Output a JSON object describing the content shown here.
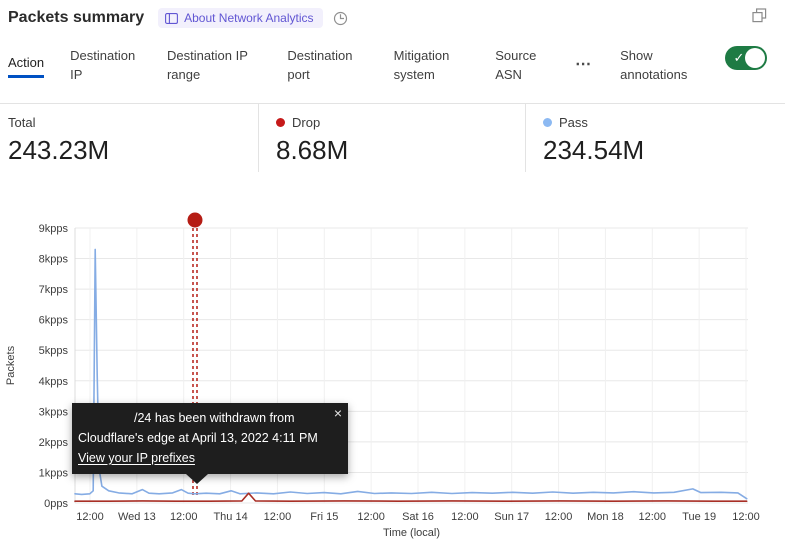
{
  "header": {
    "title": "Packets summary",
    "about_badge_label": "About Network Analytics"
  },
  "tabs": {
    "items": [
      {
        "label": "Action",
        "active": true
      },
      {
        "label": "Destination IP",
        "active": false
      },
      {
        "label": "Destination IP range",
        "active": false
      },
      {
        "label": "Destination port",
        "active": false
      },
      {
        "label": "Mitigation system",
        "active": false
      },
      {
        "label": "Source ASN",
        "active": false
      }
    ],
    "more_glyph": "⋯",
    "show_annotations": {
      "label": "Show annotations",
      "on": true,
      "check_glyph": "✓"
    }
  },
  "stats": [
    {
      "label": "Total",
      "value": "243.23M",
      "dot_color": null
    },
    {
      "label": "Drop",
      "value": "8.68M",
      "dot_color": "#c61a1a"
    },
    {
      "label": "Pass",
      "value": "234.54M",
      "dot_color": "#8cb9f2"
    }
  ],
  "tooltip": {
    "line1": "/24 has been withdrawn from",
    "line2": "Cloudflare's edge at April 13, 2022 4:11 PM",
    "link_label": "View your IP prefixes",
    "close_glyph": "×"
  },
  "chart_data": {
    "type": "line",
    "xlabel": "Time (local)",
    "ylabel": "Packets",
    "ylim": [
      0,
      9
    ],
    "y_unit": "kpps",
    "y_ticks": [
      "0pps",
      "1kpps",
      "2kpps",
      "3kpps",
      "4kpps",
      "5kpps",
      "6kpps",
      "7kpps",
      "8kpps",
      "9kpps"
    ],
    "x_ticks": [
      "12:00",
      "Wed 13",
      "12:00",
      "Thu 14",
      "12:00",
      "Fri 15",
      "12:00",
      "Sat 16",
      "12:00",
      "Sun 17",
      "12:00",
      "Mon 18",
      "12:00",
      "Tue 19",
      "12:00"
    ],
    "grid": true,
    "legend_position": "stats-row-above",
    "series": [
      {
        "name": "Pass",
        "color": "#85ace4",
        "points": [
          [
            0.0,
            0.3
          ],
          [
            0.01,
            0.28
          ],
          [
            0.022,
            0.3
          ],
          [
            0.027,
            0.4
          ],
          [
            0.03,
            8.3
          ],
          [
            0.033,
            4.2
          ],
          [
            0.036,
            1.1
          ],
          [
            0.04,
            0.55
          ],
          [
            0.05,
            0.4
          ],
          [
            0.065,
            0.33
          ],
          [
            0.085,
            0.3
          ],
          [
            0.1,
            0.44
          ],
          [
            0.11,
            0.32
          ],
          [
            0.125,
            0.3
          ],
          [
            0.145,
            0.33
          ],
          [
            0.158,
            0.44
          ],
          [
            0.168,
            0.32
          ],
          [
            0.178,
            0.3
          ],
          [
            0.195,
            0.32
          ],
          [
            0.215,
            0.3
          ],
          [
            0.232,
            0.4
          ],
          [
            0.245,
            0.3
          ],
          [
            0.27,
            0.33
          ],
          [
            0.295,
            0.3
          ],
          [
            0.32,
            0.36
          ],
          [
            0.345,
            0.31
          ],
          [
            0.37,
            0.34
          ],
          [
            0.395,
            0.3
          ],
          [
            0.42,
            0.38
          ],
          [
            0.445,
            0.31
          ],
          [
            0.47,
            0.33
          ],
          [
            0.5,
            0.31
          ],
          [
            0.53,
            0.35
          ],
          [
            0.56,
            0.31
          ],
          [
            0.59,
            0.34
          ],
          [
            0.62,
            0.32
          ],
          [
            0.65,
            0.35
          ],
          [
            0.68,
            0.32
          ],
          [
            0.71,
            0.36
          ],
          [
            0.74,
            0.32
          ],
          [
            0.77,
            0.35
          ],
          [
            0.8,
            0.33
          ],
          [
            0.83,
            0.37
          ],
          [
            0.86,
            0.33
          ],
          [
            0.89,
            0.35
          ],
          [
            0.918,
            0.46
          ],
          [
            0.93,
            0.34
          ],
          [
            0.96,
            0.35
          ],
          [
            0.985,
            0.33
          ],
          [
            0.998,
            0.14
          ]
        ]
      },
      {
        "name": "Drop",
        "color": "#a82f26",
        "points": [
          [
            0.0,
            0.06
          ],
          [
            0.05,
            0.06
          ],
          [
            0.1,
            0.07
          ],
          [
            0.15,
            0.06
          ],
          [
            0.2,
            0.06
          ],
          [
            0.248,
            0.07
          ],
          [
            0.258,
            0.32
          ],
          [
            0.268,
            0.07
          ],
          [
            0.32,
            0.06
          ],
          [
            0.4,
            0.07
          ],
          [
            0.48,
            0.06
          ],
          [
            0.56,
            0.07
          ],
          [
            0.64,
            0.06
          ],
          [
            0.72,
            0.07
          ],
          [
            0.8,
            0.06
          ],
          [
            0.88,
            0.07
          ],
          [
            0.95,
            0.06
          ],
          [
            0.998,
            0.06
          ]
        ]
      }
    ],
    "annotation": {
      "x_frac": 0.1783,
      "color": "#b51d15",
      "label_date": "April 13, 2022 4:11 PM"
    }
  }
}
